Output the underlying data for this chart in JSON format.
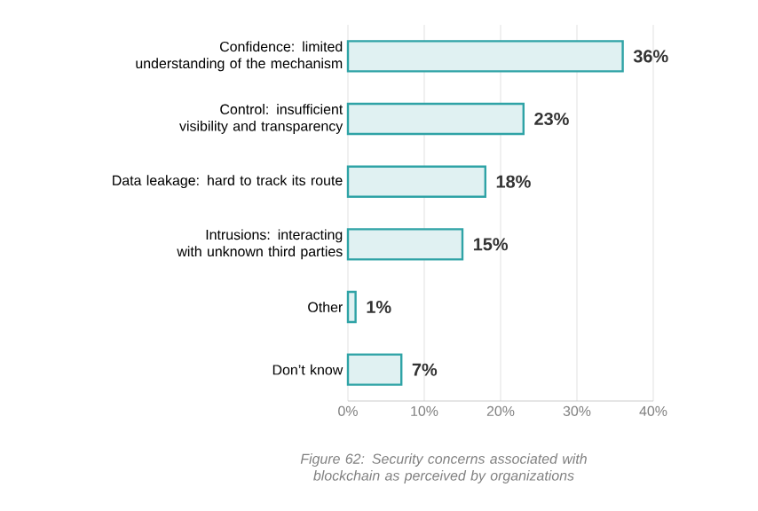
{
  "chart_data": {
    "type": "bar",
    "orientation": "horizontal",
    "categories": [
      "Confidence: limited understanding of the mechanism",
      "Control: insufficient visibility and transparency",
      "Data leakage: hard to track its route",
      "Intrusions: interacting with unknown third parties",
      "Other",
      "Don’t know"
    ],
    "values": [
      36,
      23,
      18,
      15,
      1,
      7
    ],
    "value_labels": [
      "36%",
      "23%",
      "18%",
      "15%",
      "1%",
      "7%"
    ],
    "color": "#2fa3a6",
    "xlim": [
      0,
      40
    ],
    "xticks": [
      {
        "value": 0,
        "label": "0%"
      },
      {
        "value": 10,
        "label": "10%"
      },
      {
        "value": 20,
        "label": "20%"
      },
      {
        "value": 30,
        "label": "30%"
      },
      {
        "value": 40,
        "label": "40%"
      }
    ],
    "grid": "x",
    "annotations": [
      "Figure 62: Security concerns associated with blockchain as perceived by organizations"
    ]
  }
}
